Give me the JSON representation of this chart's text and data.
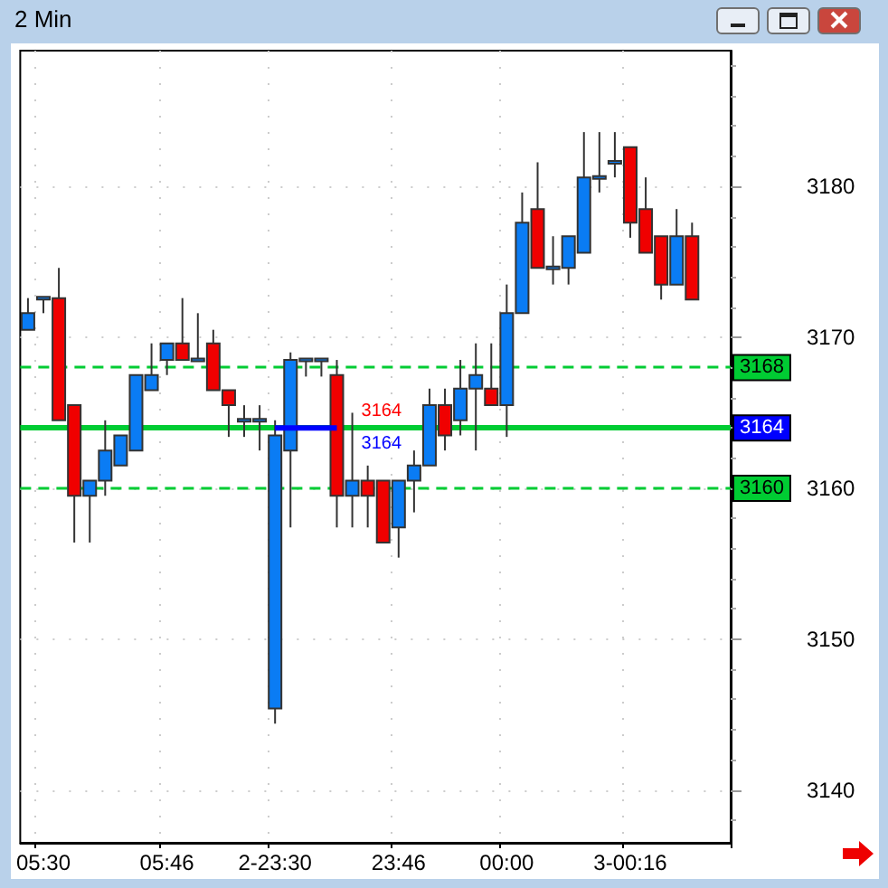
{
  "chart_data": {
    "type": "candlestick",
    "title": "2 Min",
    "categories": [
      null,
      "05:30",
      null,
      null,
      null,
      null,
      null,
      null,
      null,
      "05:46",
      null,
      null,
      null,
      null,
      null,
      null,
      "2-23:30",
      null,
      null,
      null,
      null,
      null,
      null,
      null,
      "23:46",
      null,
      null,
      null,
      null,
      null,
      null,
      "00:00",
      null,
      null,
      null,
      null,
      null,
      null,
      null,
      "3-00:16",
      null,
      null,
      null,
      null
    ],
    "ohlc": [
      [
        3170.5,
        3172.6,
        3170.5,
        3171.6
      ],
      [
        3172.6,
        3172.6,
        3171.6,
        3172.6
      ],
      [
        3172.6,
        3174.6,
        3164.5,
        3164.5
      ],
      [
        3165.5,
        3165.5,
        3156.4,
        3159.5
      ],
      [
        3159.5,
        3160.5,
        3156.4,
        3160.5
      ],
      [
        3160.5,
        3164.5,
        3159.5,
        3162.5
      ],
      [
        3161.5,
        3163.5,
        3161.5,
        3163.5
      ],
      [
        3162.5,
        3167.5,
        3162.5,
        3167.5
      ],
      [
        3166.5,
        3169.6,
        3166.5,
        3167.5
      ],
      [
        3168.5,
        3169.6,
        3167.5,
        3169.6
      ],
      [
        3169.6,
        3172.6,
        3168.5,
        3168.5
      ],
      [
        3168.5,
        3171.6,
        3168.5,
        3168.5
      ],
      [
        3169.6,
        3170.5,
        3166.5,
        3166.5
      ],
      [
        3166.5,
        3166.5,
        3163.4,
        3165.5
      ],
      [
        3164.5,
        3165.5,
        3163.4,
        3164.5
      ],
      [
        3164.5,
        3165.5,
        3162.5,
        3164.5
      ],
      [
        3145.4,
        3164.5,
        3144.4,
        3163.5
      ],
      [
        3162.5,
        3169,
        3157.4,
        3168.5
      ],
      [
        3168.5,
        3168.5,
        3167.4,
        3168.5
      ],
      [
        3168.5,
        3168.5,
        3167.4,
        3168.5
      ],
      [
        3167.5,
        3168.5,
        3157.4,
        3159.5
      ],
      [
        3159.5,
        3165,
        3157.4,
        3160.5
      ],
      [
        3160.5,
        3161.5,
        3157.4,
        3159.5
      ],
      [
        3160.5,
        3160.5,
        3156.4,
        3156.4
      ],
      [
        3157.4,
        3160.5,
        3155.4,
        3160.5
      ],
      [
        3160.5,
        3162.5,
        3158.4,
        3161.5
      ],
      [
        3161.5,
        3166.6,
        3161.5,
        3165.5
      ],
      [
        3165.5,
        3166.6,
        3162.5,
        3163.5
      ],
      [
        3164.5,
        3168.5,
        3163.5,
        3166.6
      ],
      [
        3166.6,
        3169.6,
        3162.5,
        3167.5
      ],
      [
        3166.6,
        3169.6,
        3165.5,
        3165.5
      ],
      [
        3165.5,
        3173.5,
        3163.4,
        3171.6
      ],
      [
        3171.6,
        3179.6,
        3171.6,
        3177.6
      ],
      [
        3178.5,
        3181.6,
        3174.6,
        3174.6
      ],
      [
        3174.6,
        3176.7,
        3173.5,
        3174.6
      ],
      [
        3174.6,
        3176.7,
        3173.5,
        3176.7
      ],
      [
        3175.6,
        3183.6,
        3175.6,
        3180.6
      ],
      [
        3180.6,
        3183.6,
        3179.6,
        3180.6
      ],
      [
        3181.6,
        3183.6,
        3180.6,
        3181.6
      ],
      [
        3182.6,
        3182.6,
        3176.6,
        3177.6
      ],
      [
        3178.5,
        3180.6,
        3175.6,
        3175.6
      ],
      [
        3176.7,
        3176.7,
        3172.5,
        3173.5
      ],
      [
        3173.5,
        3178.5,
        3173.5,
        3176.7
      ],
      [
        3176.7,
        3177.6,
        3172.5,
        3172.5
      ]
    ],
    "series": [
      {
        "type": "line",
        "color": "#0000ff",
        "values": [
          null,
          null,
          null,
          null,
          null,
          null,
          null,
          null,
          null,
          null,
          null,
          null,
          null,
          null,
          null,
          null,
          3164,
          3164,
          3164,
          3164,
          3164,
          null,
          null,
          null,
          null,
          null,
          null,
          null,
          null,
          null,
          null,
          null,
          null,
          null,
          null,
          null,
          null,
          null,
          null,
          null,
          null,
          null,
          null,
          null
        ]
      }
    ],
    "ylim": [
      3136.5,
      3189
    ],
    "yticks": [
      3140,
      3150,
      3160,
      3170,
      3180
    ],
    "grid": true,
    "marker": "none",
    "ref_lines": [
      {
        "axis": "y",
        "value": 3168,
        "label": "3168",
        "color": "#00cc33",
        "line_style": "dashed"
      },
      {
        "axis": "y",
        "value": 3164,
        "label": "3164",
        "color": "#00cc33",
        "line_style": "solid"
      },
      {
        "axis": "y",
        "value": 3160,
        "label": "3160",
        "color": "#00cc33",
        "line_style": "dashed"
      }
    ],
    "annotations": [
      {
        "text": "3164",
        "y": 3164
      },
      {
        "text": "3164",
        "y": 3164
      }
    ]
  }
}
